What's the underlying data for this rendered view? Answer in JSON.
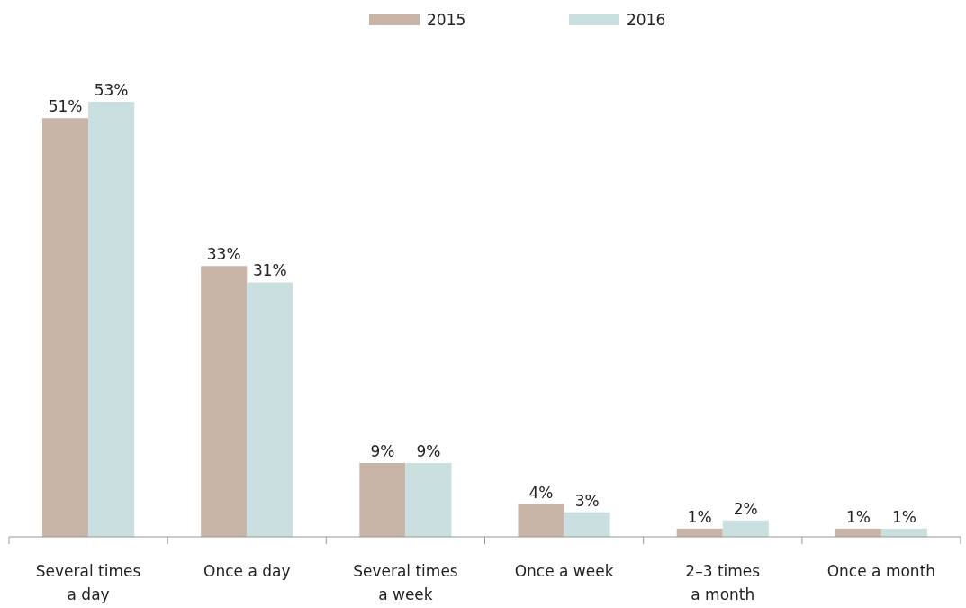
{
  "chart_data": {
    "type": "bar",
    "categories": [
      "Several times a day",
      "Once a day",
      "Several times a week",
      "Once a week",
      "2–3 times a month",
      "Once a month"
    ],
    "series": [
      {
        "name": "2015",
        "color": "#c9b5a7",
        "values": [
          51,
          33,
          9,
          4,
          1,
          1
        ],
        "value_labels": [
          "51%",
          "33%",
          "9%",
          "4%",
          "1%",
          "1%"
        ]
      },
      {
        "name": "2016",
        "color": "#c9dfe0",
        "values": [
          53,
          31,
          9,
          3,
          2,
          1
        ],
        "value_labels": [
          "53%",
          "31%",
          "9%",
          "3%",
          "2%",
          "1%"
        ]
      }
    ],
    "legend": "top"
  }
}
